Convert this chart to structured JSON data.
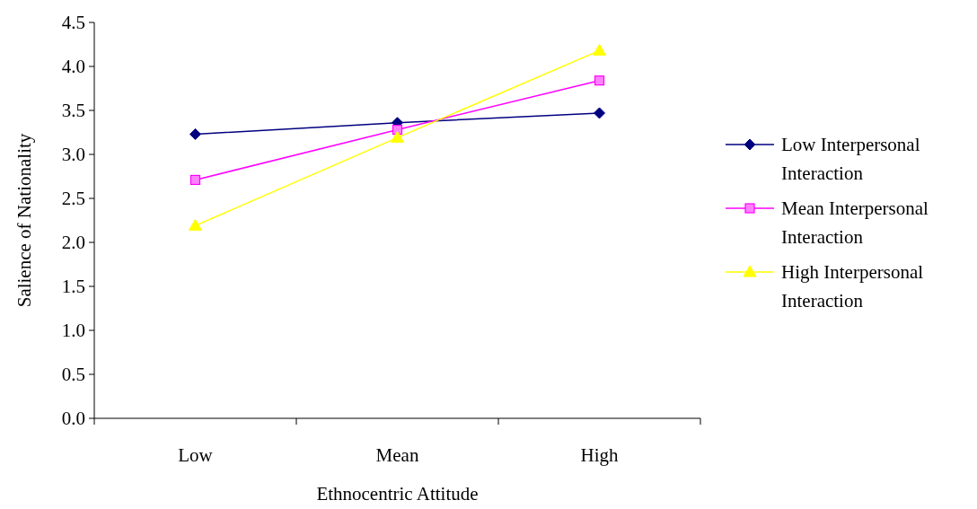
{
  "chart_data": {
    "type": "line",
    "xlabel": "Ethnocentric Attitude",
    "ylabel": "Salience of Nationality",
    "categories": [
      "Low",
      "Mean",
      "High"
    ],
    "series": [
      {
        "name": "Low Interpersonal Interaction",
        "color": "#000080",
        "marker": "diamond",
        "values": [
          3.23,
          3.36,
          3.47
        ]
      },
      {
        "name": "Mean Interpersonal Interaction",
        "color": "#ff00ff",
        "marker": "square",
        "values": [
          2.71,
          3.28,
          3.84
        ]
      },
      {
        "name": "High Interpersonal Interaction",
        "color": "#ffff00",
        "marker": "triangle",
        "values": [
          2.19,
          3.19,
          4.18
        ]
      }
    ],
    "ylim": [
      0,
      4.5
    ],
    "yticks": [
      {
        "value": 0,
        "label": "0.0"
      },
      {
        "value": 0.5,
        "label": "0.5"
      },
      {
        "value": 1,
        "label": "1.0"
      },
      {
        "value": 1.5,
        "label": "1.5"
      },
      {
        "value": 2,
        "label": "2.0"
      },
      {
        "value": 2.5,
        "label": "2.5"
      },
      {
        "value": 3,
        "label": "3.0"
      },
      {
        "value": 3.5,
        "label": "3.5"
      },
      {
        "value": 4,
        "label": "4.0"
      },
      {
        "value": 4.5,
        "label": "4.5"
      }
    ],
    "grid": false,
    "legend": "right"
  }
}
